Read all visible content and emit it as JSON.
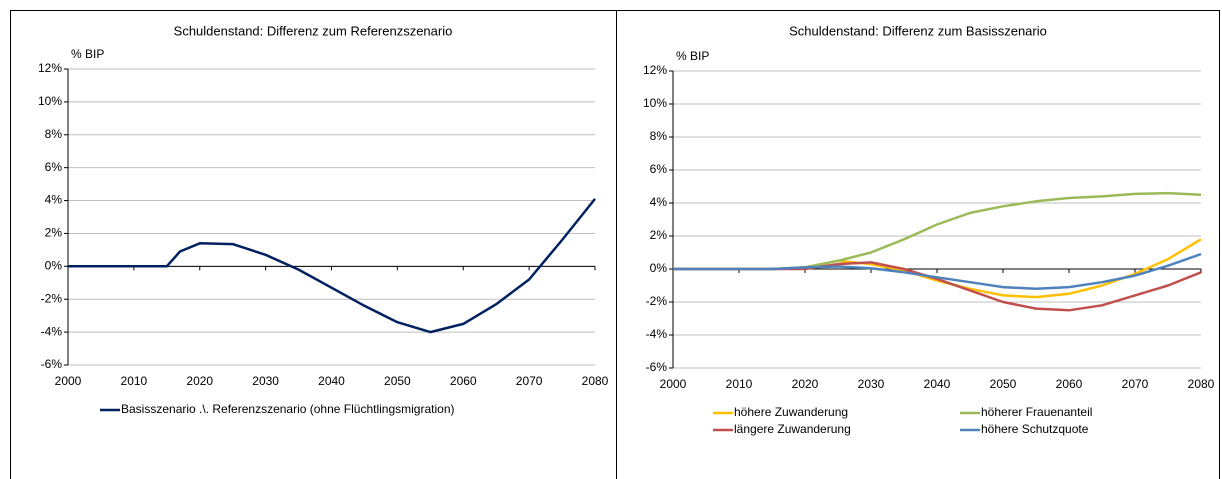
{
  "chart_data": [
    {
      "type": "line",
      "title": "Schuldenstand: Differenz zum Referenzszenario",
      "y_label": "% BIP",
      "x": [
        2000,
        2005,
        2010,
        2015,
        2017,
        2020,
        2025,
        2030,
        2035,
        2040,
        2045,
        2050,
        2055,
        2060,
        2065,
        2070,
        2075,
        2080
      ],
      "series": [
        {
          "name": "Basisszenario .\\. Referenzszenario (ohne Flüchtlingsmigration)",
          "color": "#002060",
          "values": [
            0,
            0,
            0,
            0,
            0.9,
            1.4,
            1.35,
            0.7,
            -0.2,
            -1.3,
            -2.4,
            -3.4,
            -4.0,
            -3.5,
            -2.3,
            -0.8,
            1.6,
            4.1
          ]
        }
      ],
      "xlim": [
        2000,
        2080
      ],
      "xticks": [
        2000,
        2010,
        2020,
        2030,
        2040,
        2050,
        2060,
        2070,
        2080
      ],
      "ylim": [
        -6,
        12
      ],
      "yticks": [
        {
          "value": -6,
          "label": "-6%"
        },
        {
          "value": -4,
          "label": "-4%"
        },
        {
          "value": -2,
          "label": "-2%"
        },
        {
          "value": 0,
          "label": "0%"
        },
        {
          "value": 2,
          "label": "2%"
        },
        {
          "value": 4,
          "label": "4%"
        },
        {
          "value": 6,
          "label": "6%"
        },
        {
          "value": 8,
          "label": "8%"
        },
        {
          "value": 10,
          "label": "10%"
        },
        {
          "value": 12,
          "label": "12%"
        }
      ],
      "grid": true,
      "legend": "bottom"
    },
    {
      "type": "line",
      "title": "Schuldenstand: Differenz zum Basisszenario",
      "y_label": "% BIP",
      "x": [
        2000,
        2005,
        2010,
        2015,
        2020,
        2025,
        2030,
        2035,
        2040,
        2045,
        2050,
        2055,
        2060,
        2065,
        2070,
        2075,
        2080
      ],
      "series": [
        {
          "name": "höhere Zuwanderung",
          "color": "#ffc000",
          "values": [
            0,
            0,
            0,
            0,
            0.1,
            0.5,
            0.3,
            -0.1,
            -0.7,
            -1.2,
            -1.6,
            -1.7,
            -1.5,
            -1.0,
            -0.3,
            0.6,
            1.8
          ]
        },
        {
          "name": "höherer Frauenanteil",
          "color": "#9bbb59",
          "values": [
            0,
            0,
            0,
            0,
            0.1,
            0.5,
            1.0,
            1.8,
            2.7,
            3.4,
            3.8,
            4.1,
            4.3,
            4.4,
            4.55,
            4.6,
            4.5
          ]
        },
        {
          "name": "längere Zuwanderung",
          "color": "#c0504d",
          "values": [
            0,
            0,
            0,
            0,
            0,
            0.3,
            0.4,
            0,
            -0.6,
            -1.3,
            -2.0,
            -2.4,
            -2.5,
            -2.2,
            -1.6,
            -1.0,
            -0.2
          ]
        },
        {
          "name": "höhere Schutzquote",
          "color": "#4f81bd",
          "values": [
            0,
            0,
            0,
            0,
            0.1,
            0.15,
            0.05,
            -0.2,
            -0.5,
            -0.8,
            -1.1,
            -1.2,
            -1.1,
            -0.8,
            -0.4,
            0.2,
            0.9
          ]
        }
      ],
      "xlim": [
        2000,
        2080
      ],
      "xticks": [
        2000,
        2010,
        2020,
        2030,
        2040,
        2050,
        2060,
        2070,
        2080
      ],
      "ylim": [
        -6,
        12
      ],
      "yticks": [
        {
          "value": -6,
          "label": "-6%"
        },
        {
          "value": -4,
          "label": "-4%"
        },
        {
          "value": -2,
          "label": "-2%"
        },
        {
          "value": 0,
          "label": "0%"
        },
        {
          "value": 2,
          "label": "2%"
        },
        {
          "value": 4,
          "label": "4%"
        },
        {
          "value": 6,
          "label": "6%"
        },
        {
          "value": 8,
          "label": "8%"
        },
        {
          "value": 10,
          "label": "10%"
        },
        {
          "value": 12,
          "label": "12%"
        }
      ],
      "grid": true,
      "legend": "bottom"
    }
  ]
}
